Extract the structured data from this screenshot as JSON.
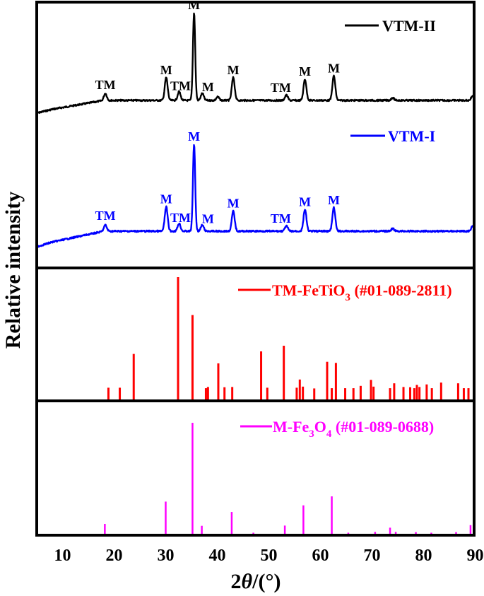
{
  "figure": {
    "xlabel_prefix": "2",
    "xlabel_theta": "θ",
    "xlabel_suffix": "/(°)",
    "ylabel": "Relative intensity",
    "x_ticks": [
      "10",
      "20",
      "30",
      "40",
      "50",
      "60",
      "70",
      "80",
      "90"
    ]
  },
  "legend": {
    "vtm2": "VTM-II",
    "vtm1": "VTM-I",
    "tm_prefix": "TM-FeTiO",
    "tm_sub": "3",
    "tm_suffix": " (#01-089-2811)",
    "m_prefix": "M-Fe",
    "m_sub1": "3",
    "m_mid": "O",
    "m_sub2": "4",
    "m_suffix": " (#01-089-0688)"
  },
  "colors": {
    "vtm2": "#000000",
    "vtm1": "#0000ff",
    "tm_ref": "#ff0000",
    "m_ref": "#ff00ff",
    "frame": "#000000"
  },
  "chart_data": [
    {
      "type": "line",
      "title": "XRD pattern VTM-II",
      "series_name": "VTM-II",
      "xlabel": "2θ/(°)",
      "ylabel": "Relative intensity",
      "xlim": [
        5,
        90
      ],
      "peaks": [
        {
          "x": 18.3,
          "label": "TM",
          "rel": 0.08
        },
        {
          "x": 30.1,
          "label": "M",
          "rel": 0.26
        },
        {
          "x": 32.6,
          "label": "TM",
          "rel": 0.1
        },
        {
          "x": 35.5,
          "label": "M",
          "rel": 1.0
        },
        {
          "x": 37.1,
          "label": "M",
          "rel": 0.08
        },
        {
          "x": 40.1,
          "label": "",
          "rel": 0.04
        },
        {
          "x": 43.1,
          "label": "M",
          "rel": 0.26
        },
        {
          "x": 53.4,
          "label": "TM",
          "rel": 0.06
        },
        {
          "x": 57.0,
          "label": "M",
          "rel": 0.24
        },
        {
          "x": 62.6,
          "label": "M",
          "rel": 0.28
        },
        {
          "x": 74.0,
          "label": "",
          "rel": 0.03
        },
        {
          "x": 89.5,
          "label": "",
          "rel": 0.05
        }
      ]
    },
    {
      "type": "line",
      "title": "XRD pattern VTM-I",
      "series_name": "VTM-I",
      "xlabel": "2θ/(°)",
      "ylabel": "Relative intensity",
      "xlim": [
        5,
        90
      ],
      "peaks": [
        {
          "x": 18.3,
          "label": "TM",
          "rel": 0.07
        },
        {
          "x": 30.1,
          "label": "M",
          "rel": 0.28
        },
        {
          "x": 32.6,
          "label": "TM",
          "rel": 0.09
        },
        {
          "x": 35.5,
          "label": "M",
          "rel": 1.0
        },
        {
          "x": 37.1,
          "label": "M",
          "rel": 0.07
        },
        {
          "x": 43.1,
          "label": "M",
          "rel": 0.23
        },
        {
          "x": 53.4,
          "label": "TM",
          "rel": 0.06
        },
        {
          "x": 57.0,
          "label": "M",
          "rel": 0.25
        },
        {
          "x": 62.6,
          "label": "M",
          "rel": 0.27
        },
        {
          "x": 74.0,
          "label": "",
          "rel": 0.03
        },
        {
          "x": 89.5,
          "label": "",
          "rel": 0.06
        }
      ]
    },
    {
      "type": "bar",
      "title": "TM-FeTiO3 reference (#01-089-2811)",
      "series_name": "TM-FeTiO3 (#01-089-2811)",
      "xlim": [
        5,
        90
      ],
      "x": [
        18.9,
        21.1,
        23.8,
        32.4,
        35.2,
        37.8,
        38.2,
        40.2,
        41.4,
        42.9,
        48.5,
        49.7,
        52.9,
        55.4,
        56.0,
        56.6,
        58.8,
        61.3,
        62.2,
        63.0,
        64.8,
        66.4,
        67.8,
        69.8,
        70.3,
        73.5,
        74.3,
        76.1,
        77.4,
        78.2,
        78.7,
        79.2,
        80.6,
        81.6,
        83.4,
        86.7,
        87.8,
        88.7
      ],
      "values": [
        9.6,
        9.6,
        37.2,
        100,
        69.0,
        9.2,
        10.2,
        29.5,
        10.0,
        10.2,
        39.3,
        9.6,
        43.9,
        9.6,
        16.3,
        10.5,
        9.0,
        30.8,
        9.2,
        29.9,
        9.2,
        9.2,
        11.1,
        16.0,
        10.5,
        9.2,
        13.2,
        10.2,
        10.0,
        9.2,
        11.9,
        10.2,
        12.3,
        9.2,
        13.8,
        13.2,
        9.2,
        9.2
      ]
    },
    {
      "type": "bar",
      "title": "M-Fe3O4 reference (#01-089-0688)",
      "series_name": "M-Fe3O4 (#01-089-0688)",
      "xlim": [
        5,
        90
      ],
      "x": [
        18.2,
        30.0,
        35.2,
        37.0,
        42.8,
        47.0,
        53.1,
        56.7,
        62.2,
        65.4,
        70.6,
        73.5,
        74.6,
        78.5,
        81.5,
        86.3,
        89.1
      ],
      "values": [
        8.9,
        29.0,
        100,
        7.2,
        19.7,
        0.4,
        7.4,
        25.6,
        33.7,
        0.4,
        1.7,
        5.5,
        1.7,
        1.5,
        0.4,
        1.5,
        7.8
      ]
    }
  ]
}
